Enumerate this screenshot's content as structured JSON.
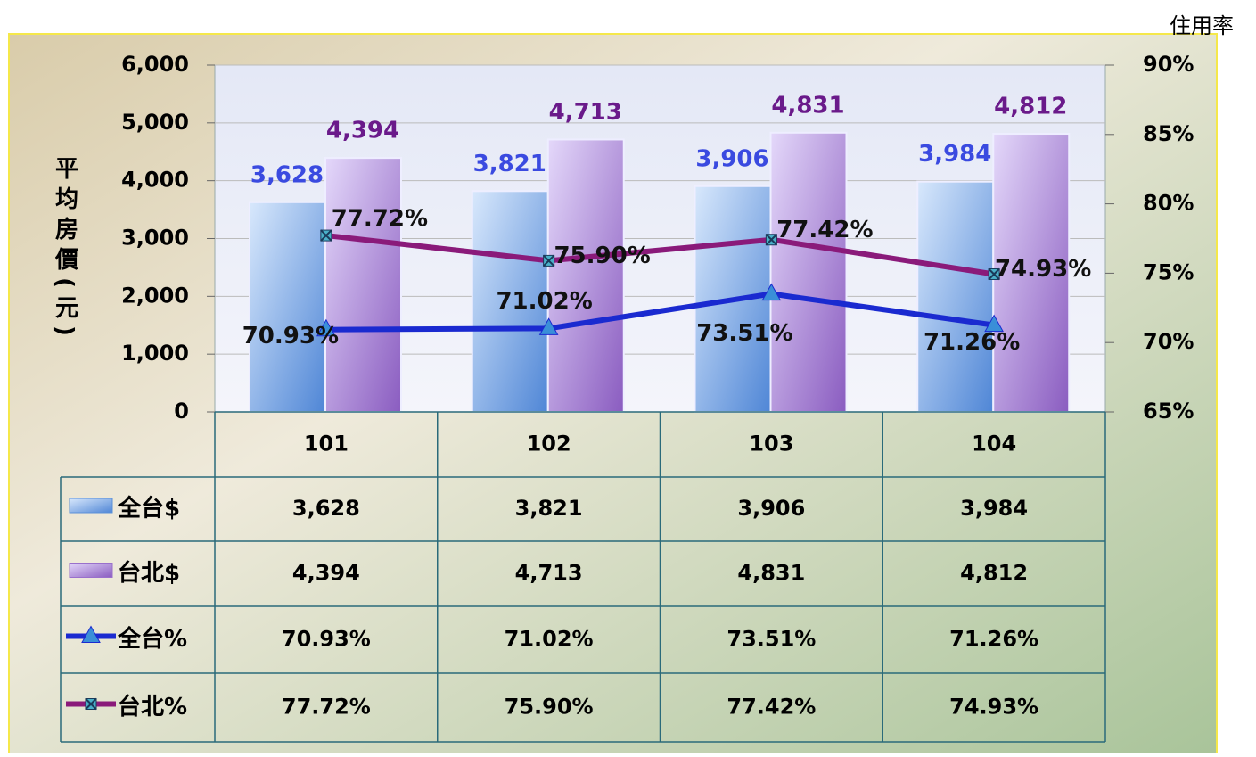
{
  "chart_data": {
    "type": "bar",
    "y_label": "平均房價(元)",
    "y2_label": "住用率",
    "categories": [
      "101",
      "102",
      "103",
      "104"
    ],
    "series": [
      {
        "name": "全台$",
        "type": "bar",
        "color": "#5a8fd8",
        "values": [
          3628,
          3821,
          3906,
          3984
        ],
        "value_labels": [
          "3,628",
          "3,821",
          "3,906",
          "3,984"
        ]
      },
      {
        "name": "台北$",
        "type": "bar",
        "color": "#9a70cc",
        "values": [
          4394,
          4713,
          4831,
          4812
        ],
        "value_labels": [
          "4,394",
          "4,713",
          "4,831",
          "4,812"
        ]
      },
      {
        "name": "全台%",
        "type": "line",
        "axis": "y2",
        "color": "#1a2ad0",
        "values": [
          70.93,
          71.02,
          73.51,
          71.26
        ],
        "value_labels": [
          "70.93%",
          "71.02%",
          "73.51%",
          "71.26%"
        ]
      },
      {
        "name": "台北%",
        "type": "line",
        "axis": "y2",
        "color": "#8a1a7a",
        "values": [
          77.72,
          75.9,
          77.42,
          74.93
        ],
        "value_labels": [
          "77.72%",
          "75.90%",
          "77.42%",
          "74.93%"
        ]
      }
    ],
    "ylim": [
      0,
      6000
    ],
    "yticks": [
      0,
      {
        "value": 1000,
        "label": "1,000"
      },
      {
        "value": 2000,
        "label": "2,000"
      },
      {
        "value": 3000,
        "label": "3,000"
      },
      {
        "value": 4000,
        "label": "4,000"
      },
      {
        "value": 5000,
        "label": "5,000"
      },
      {
        "value": 6000,
        "label": "6,000"
      }
    ],
    "y2lim": [
      65,
      90
    ],
    "y2ticks": [
      {
        "value": 65,
        "label": "65%"
      },
      {
        "value": 70,
        "label": "70%"
      },
      {
        "value": 75,
        "label": "75%"
      },
      {
        "value": 80,
        "label": "80%"
      },
      {
        "value": 85,
        "label": "85%"
      },
      {
        "value": 90,
        "label": "90%"
      }
    ],
    "grid": true
  }
}
